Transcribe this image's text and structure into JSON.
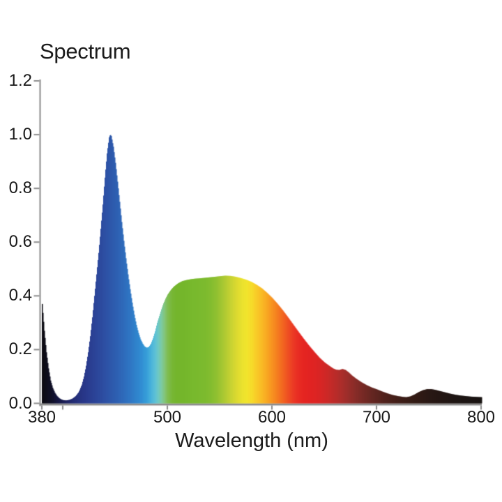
{
  "title": "Spectrum",
  "xlabel": "Wavelength (nm)",
  "chart_data": {
    "type": "area",
    "title": "Spectrum",
    "xlabel": "Wavelength (nm)",
    "ylabel": "",
    "xlim": [
      380,
      800
    ],
    "ylim": [
      0,
      1.2
    ],
    "grid": false,
    "legend": false,
    "axis_color": "#8c8c8c",
    "x_ticks": [
      {
        "value": 380,
        "label": "380"
      },
      {
        "value": 400,
        "label": ""
      },
      {
        "value": 500,
        "label": "500"
      },
      {
        "value": 600,
        "label": "600"
      },
      {
        "value": 700,
        "label": "700"
      },
      {
        "value": 800,
        "label": "800"
      }
    ],
    "y_ticks": [
      {
        "value": 0.0,
        "label": "0.0"
      },
      {
        "value": 0.2,
        "label": "0.2"
      },
      {
        "value": 0.4,
        "label": "0.4"
      },
      {
        "value": 0.6,
        "label": "0.6"
      },
      {
        "value": 0.8,
        "label": "0.8"
      },
      {
        "value": 1.0,
        "label": "1.0"
      },
      {
        "value": 1.2,
        "label": "1.2"
      }
    ],
    "x": [
      380,
      382,
      384,
      386,
      388,
      390,
      392,
      394,
      396,
      398,
      400,
      403,
      406,
      409,
      412,
      415,
      418,
      420,
      422,
      424,
      426,
      428,
      430,
      432,
      434,
      436,
      438,
      440,
      442,
      444,
      445,
      446,
      448,
      450,
      452,
      454,
      456,
      458,
      460,
      462,
      464,
      466,
      468,
      470,
      472,
      474,
      476,
      478,
      480,
      482,
      484,
      486,
      488,
      490,
      492,
      494,
      496,
      498,
      500,
      503,
      506,
      510,
      514,
      518,
      522,
      526,
      530,
      535,
      540,
      545,
      550,
      555,
      560,
      565,
      570,
      575,
      580,
      585,
      590,
      595,
      600,
      605,
      610,
      615,
      620,
      625,
      630,
      635,
      640,
      645,
      650,
      655,
      658,
      661,
      664,
      667,
      670,
      673,
      676,
      680,
      685,
      690,
      695,
      700,
      705,
      710,
      715,
      720,
      725,
      728,
      732,
      736,
      740,
      744,
      748,
      752,
      756,
      760,
      765,
      770,
      775,
      780,
      785,
      790,
      795,
      800
    ],
    "values": [
      0.37,
      0.27,
      0.19,
      0.13,
      0.085,
      0.058,
      0.04,
      0.028,
      0.02,
      0.015,
      0.012,
      0.011,
      0.013,
      0.018,
      0.027,
      0.042,
      0.07,
      0.1,
      0.14,
      0.19,
      0.25,
      0.32,
      0.4,
      0.48,
      0.56,
      0.65,
      0.74,
      0.84,
      0.93,
      0.99,
      1.0,
      0.995,
      0.955,
      0.895,
      0.825,
      0.75,
      0.675,
      0.605,
      0.54,
      0.48,
      0.425,
      0.375,
      0.33,
      0.292,
      0.262,
      0.238,
      0.222,
      0.211,
      0.207,
      0.21,
      0.222,
      0.242,
      0.268,
      0.3,
      0.325,
      0.35,
      0.372,
      0.39,
      0.405,
      0.422,
      0.435,
      0.447,
      0.455,
      0.459,
      0.462,
      0.464,
      0.465,
      0.467,
      0.469,
      0.471,
      0.473,
      0.475,
      0.474,
      0.471,
      0.466,
      0.46,
      0.452,
      0.441,
      0.428,
      0.411,
      0.392,
      0.37,
      0.346,
      0.32,
      0.293,
      0.266,
      0.24,
      0.215,
      0.192,
      0.17,
      0.152,
      0.138,
      0.13,
      0.125,
      0.124,
      0.128,
      0.124,
      0.115,
      0.104,
      0.092,
      0.079,
      0.068,
      0.059,
      0.052,
      0.044,
      0.037,
      0.031,
      0.027,
      0.024,
      0.023,
      0.026,
      0.033,
      0.042,
      0.049,
      0.053,
      0.053,
      0.05,
      0.046,
      0.041,
      0.036,
      0.032,
      0.029,
      0.027,
      0.025,
      0.024,
      0.023
    ],
    "color_stops": [
      {
        "wl": 380,
        "hex": "#0b0a10"
      },
      {
        "wl": 390,
        "hex": "#10102a"
      },
      {
        "wl": 395,
        "hex": "#141540"
      },
      {
        "wl": 400,
        "hex": "#1a1d52"
      },
      {
        "wl": 405,
        "hex": "#1f2565"
      },
      {
        "wl": 410,
        "hex": "#232c74"
      },
      {
        "wl": 415,
        "hex": "#263280"
      },
      {
        "wl": 420,
        "hex": "#283789"
      },
      {
        "wl": 425,
        "hex": "#2a3d90"
      },
      {
        "wl": 430,
        "hex": "#2b4397"
      },
      {
        "wl": 435,
        "hex": "#2c499d"
      },
      {
        "wl": 440,
        "hex": "#2d50a4"
      },
      {
        "wl": 445,
        "hex": "#2d57aa"
      },
      {
        "wl": 450,
        "hex": "#2d5eb0"
      },
      {
        "wl": 455,
        "hex": "#2e66b7"
      },
      {
        "wl": 460,
        "hex": "#2e6fbe"
      },
      {
        "wl": 465,
        "hex": "#2f78c5"
      },
      {
        "wl": 470,
        "hex": "#2f83cc"
      },
      {
        "wl": 475,
        "hex": "#318ed3"
      },
      {
        "wl": 480,
        "hex": "#379fd9"
      },
      {
        "wl": 484,
        "hex": "#48b2db"
      },
      {
        "wl": 488,
        "hex": "#5dc1d6"
      },
      {
        "wl": 491,
        "hex": "#6ec8c3"
      },
      {
        "wl": 494,
        "hex": "#7ccaa4"
      },
      {
        "wl": 497,
        "hex": "#83c57b"
      },
      {
        "wl": 500,
        "hex": "#7fbd52"
      },
      {
        "wl": 504,
        "hex": "#78b737"
      },
      {
        "wl": 508,
        "hex": "#74b52c"
      },
      {
        "wl": 515,
        "hex": "#74b62b"
      },
      {
        "wl": 525,
        "hex": "#78b92d"
      },
      {
        "wl": 535,
        "hex": "#7cba2e"
      },
      {
        "wl": 542,
        "hex": "#84bd2f"
      },
      {
        "wl": 548,
        "hex": "#95c231"
      },
      {
        "wl": 554,
        "hex": "#adc932"
      },
      {
        "wl": 560,
        "hex": "#c6d232"
      },
      {
        "wl": 566,
        "hex": "#dcda30"
      },
      {
        "wl": 571,
        "hex": "#eae22e"
      },
      {
        "wl": 576,
        "hex": "#f2e42c"
      },
      {
        "wl": 580,
        "hex": "#f6dc2a"
      },
      {
        "wl": 584,
        "hex": "#f8cf28"
      },
      {
        "wl": 588,
        "hex": "#f9c126"
      },
      {
        "wl": 592,
        "hex": "#f9b324"
      },
      {
        "wl": 596,
        "hex": "#f8a321"
      },
      {
        "wl": 600,
        "hex": "#f79220"
      },
      {
        "wl": 604,
        "hex": "#f5811f"
      },
      {
        "wl": 608,
        "hex": "#f36f20"
      },
      {
        "wl": 612,
        "hex": "#f15d21"
      },
      {
        "wl": 616,
        "hex": "#ee4b23"
      },
      {
        "wl": 620,
        "hex": "#eb3a24"
      },
      {
        "wl": 625,
        "hex": "#e82c23"
      },
      {
        "wl": 630,
        "hex": "#e52521"
      },
      {
        "wl": 636,
        "hex": "#e22322"
      },
      {
        "wl": 642,
        "hex": "#dd2423"
      },
      {
        "wl": 648,
        "hex": "#d52625"
      },
      {
        "wl": 654,
        "hex": "#c92927"
      },
      {
        "wl": 660,
        "hex": "#bb2b29"
      },
      {
        "wl": 666,
        "hex": "#ac2d2a"
      },
      {
        "wl": 672,
        "hex": "#9c2d2a"
      },
      {
        "wl": 678,
        "hex": "#8c2c28"
      },
      {
        "wl": 684,
        "hex": "#7d2a26"
      },
      {
        "wl": 690,
        "hex": "#702823"
      },
      {
        "wl": 696,
        "hex": "#642621"
      },
      {
        "wl": 700,
        "hex": "#5d241f"
      },
      {
        "wl": 708,
        "hex": "#50211c"
      },
      {
        "wl": 716,
        "hex": "#461f19"
      },
      {
        "wl": 724,
        "hex": "#3d1d17"
      },
      {
        "wl": 732,
        "hex": "#361c15"
      },
      {
        "wl": 740,
        "hex": "#301a14"
      },
      {
        "wl": 750,
        "hex": "#291814"
      },
      {
        "wl": 760,
        "hex": "#241613"
      },
      {
        "wl": 775,
        "hex": "#1e1513"
      },
      {
        "wl": 800,
        "hex": "#181311"
      }
    ]
  }
}
